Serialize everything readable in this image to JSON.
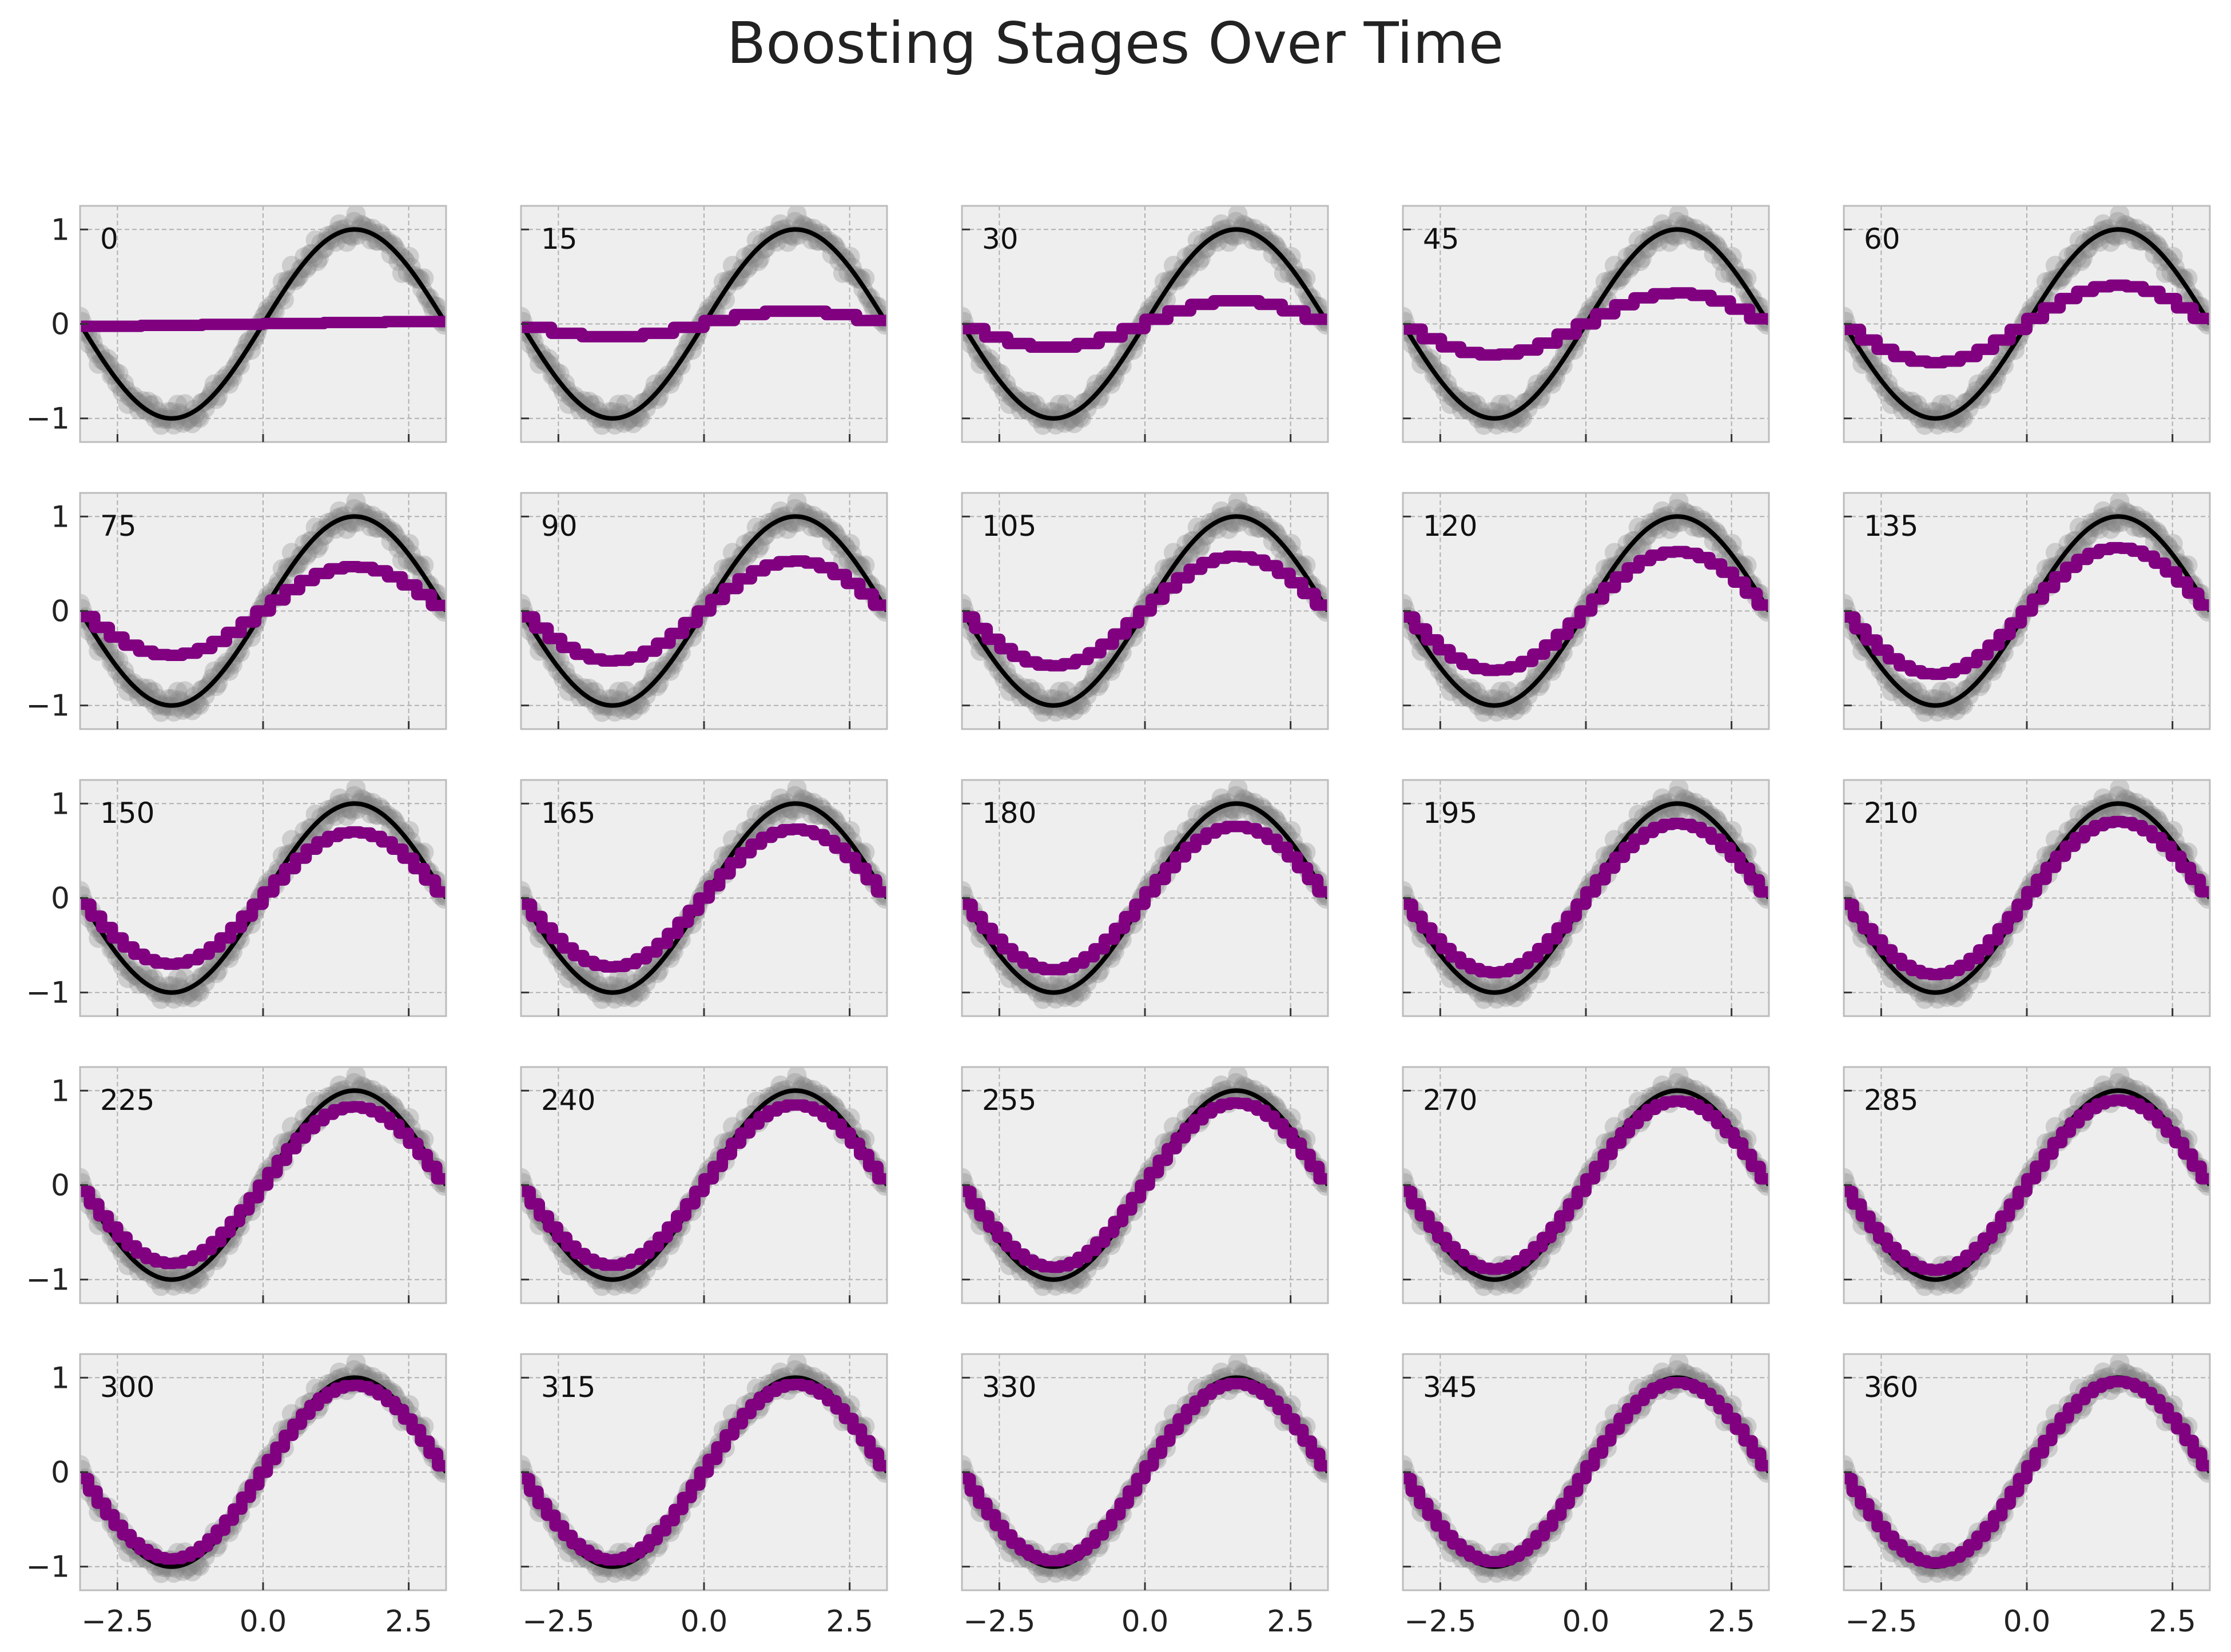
{
  "chart_data": {
    "type": "line",
    "title": "Boosting Stages Over Time",
    "grid": true,
    "layout": {
      "rows": 5,
      "cols": 5
    },
    "xlim": [
      -3.1416,
      3.1416
    ],
    "ylim": [
      -1.25,
      1.25
    ],
    "xticks": [
      -2.5,
      0.0,
      2.5
    ],
    "xtick_labels": [
      "−2.5",
      "0.0",
      "2.5"
    ],
    "yticks": [
      1,
      0,
      -1
    ],
    "ytick_labels": [
      "1",
      "0",
      "−1"
    ],
    "series_styles": {
      "true_function": {
        "kind": "line",
        "color": "#000000",
        "expression": "sin(x)"
      },
      "samples": {
        "kind": "scatter",
        "color": "#808080",
        "opacity": 0.3
      },
      "boosted_prediction": {
        "kind": "step",
        "color": "#800080"
      }
    },
    "panels": [
      {
        "stage_label": "0",
        "fit": 0.0
      },
      {
        "stage_label": "15",
        "fit": 0.14
      },
      {
        "stage_label": "30",
        "fit": 0.25
      },
      {
        "stage_label": "45",
        "fit": 0.33
      },
      {
        "stage_label": "60",
        "fit": 0.41
      },
      {
        "stage_label": "75",
        "fit": 0.47
      },
      {
        "stage_label": "90",
        "fit": 0.53
      },
      {
        "stage_label": "105",
        "fit": 0.58
      },
      {
        "stage_label": "120",
        "fit": 0.63
      },
      {
        "stage_label": "135",
        "fit": 0.67
      },
      {
        "stage_label": "150",
        "fit": 0.7
      },
      {
        "stage_label": "165",
        "fit": 0.73
      },
      {
        "stage_label": "180",
        "fit": 0.76
      },
      {
        "stage_label": "195",
        "fit": 0.79
      },
      {
        "stage_label": "210",
        "fit": 0.81
      },
      {
        "stage_label": "225",
        "fit": 0.83
      },
      {
        "stage_label": "240",
        "fit": 0.85
      },
      {
        "stage_label": "255",
        "fit": 0.87
      },
      {
        "stage_label": "270",
        "fit": 0.89
      },
      {
        "stage_label": "285",
        "fit": 0.9
      },
      {
        "stage_label": "300",
        "fit": 0.92
      },
      {
        "stage_label": "315",
        "fit": 0.93
      },
      {
        "stage_label": "330",
        "fit": 0.94
      },
      {
        "stage_label": "345",
        "fit": 0.95
      },
      {
        "stage_label": "360",
        "fit": 0.96
      }
    ]
  }
}
